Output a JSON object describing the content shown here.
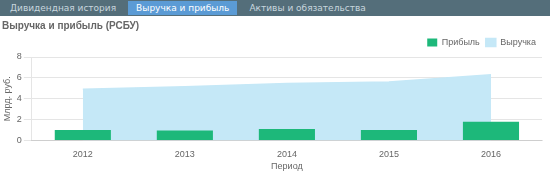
{
  "chart_data": {
    "type": "bar",
    "title": "Выручка и прибыль (РСБУ)",
    "xlabel": "Период",
    "ylabel": "Млрд. руб.",
    "categories": [
      "2012",
      "2013",
      "2014",
      "2015",
      "2016"
    ],
    "series": [
      {
        "name": "Прибыль",
        "type": "bar",
        "color": "#1db87a",
        "values": [
          1.0,
          0.95,
          1.1,
          1.0,
          1.8
        ]
      },
      {
        "name": "Выручка",
        "type": "area",
        "color": "#c5e8f7",
        "values": [
          4.9,
          5.15,
          5.45,
          5.6,
          6.3
        ]
      }
    ],
    "ylim": [
      0,
      8
    ],
    "yticks": [
      0,
      2,
      4,
      6,
      8
    ],
    "grid": true,
    "legend": "upper right",
    "annotations": [
      "Дивидендная история",
      "Выручка и прибыль",
      "Активы и обязательства"
    ]
  }
}
